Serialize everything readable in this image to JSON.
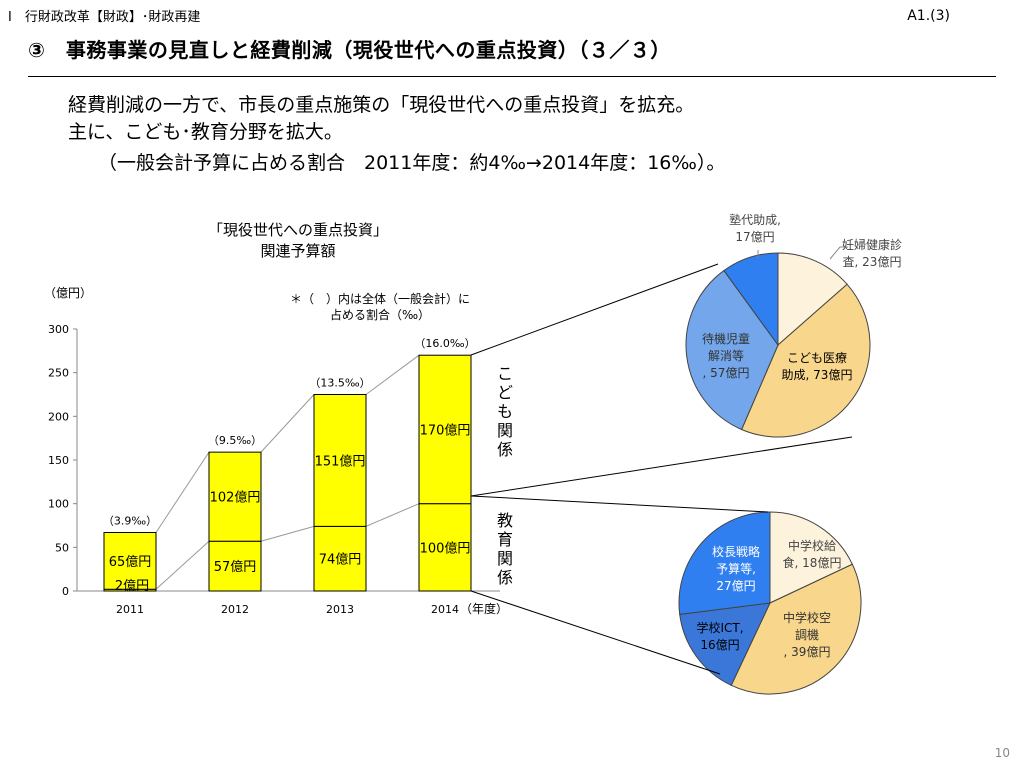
{
  "header": {
    "section": "Ⅰ　行財政改革【財政】･財政再建",
    "slide_id": "A1.(3)",
    "title": "③　事務事業の見直しと経費削減（現役世代への重点投資）（３／３）",
    "body_lines": [
      "経費削減の一方で、市長の重点施策の「現役世代への重点投資」を拡充。",
      "主に、こども･教育分野を拡大。",
      "（一般会計予算に占める割合　2011年度：約4‰→2014年度：16‰）。"
    ],
    "page_number": "10"
  },
  "colors": {
    "bar_fill": "#ffff00",
    "bar_stroke": "#000000",
    "pie_child": [
      "#fdf3dc",
      "#f8d68c",
      "#73a6ea",
      "#2f7ff0"
    ],
    "pie_edu": [
      "#fdf3dc",
      "#f8d68c",
      "#3a77d8",
      "#2f7ff0"
    ]
  },
  "chart_data": [
    {
      "type": "bar",
      "title": "「現役世代への重点投資」\n関連予算額",
      "ylabel": "（億円）",
      "xlabel": "（年度）",
      "note": "＊（　）内は全体（一般会計）に\n占める割合（‰）",
      "ylim": [
        0,
        300
      ],
      "yticks": [
        0,
        50,
        100,
        150,
        200,
        250,
        300
      ],
      "categories": [
        "2011",
        "2012",
        "2013",
        "2014"
      ],
      "series": [
        {
          "name": "教育関係",
          "values": [
            2,
            57,
            74,
            100
          ],
          "labels": [
            "2億円",
            "57億円",
            "74億円",
            "100億円"
          ]
        },
        {
          "name": "こども関係",
          "values": [
            65,
            102,
            151,
            170
          ],
          "labels": [
            "65億円",
            "102億円",
            "151億円",
            "170億円"
          ]
        }
      ],
      "totals": [
        67,
        159,
        225,
        270
      ],
      "ratio_labels": [
        "（3.9‰）",
        "（9.5‰）",
        "（13.5‰）",
        "（16.0‰）"
      ],
      "side_labels": [
        "こども関係",
        "教育関係"
      ]
    },
    {
      "type": "pie",
      "slices": [
        {
          "label": "妊婦健康診\n査, 23億円",
          "value": 23
        },
        {
          "label": "こども医療\n助成, 73億円",
          "value": 73
        },
        {
          "label": "待機児童\n解消等\n, 57億円",
          "value": 57
        },
        {
          "label": "塾代助成,\n17億円",
          "value": 17
        }
      ]
    },
    {
      "type": "pie",
      "slices": [
        {
          "label": "中学校給\n食, 18億円",
          "value": 18
        },
        {
          "label": "中学校空\n調機\n, 39億円",
          "value": 39
        },
        {
          "label": "学校ICT,\n16億円",
          "value": 16
        },
        {
          "label": "校長戦略\n予算等,\n27億円",
          "value": 27
        }
      ]
    }
  ]
}
